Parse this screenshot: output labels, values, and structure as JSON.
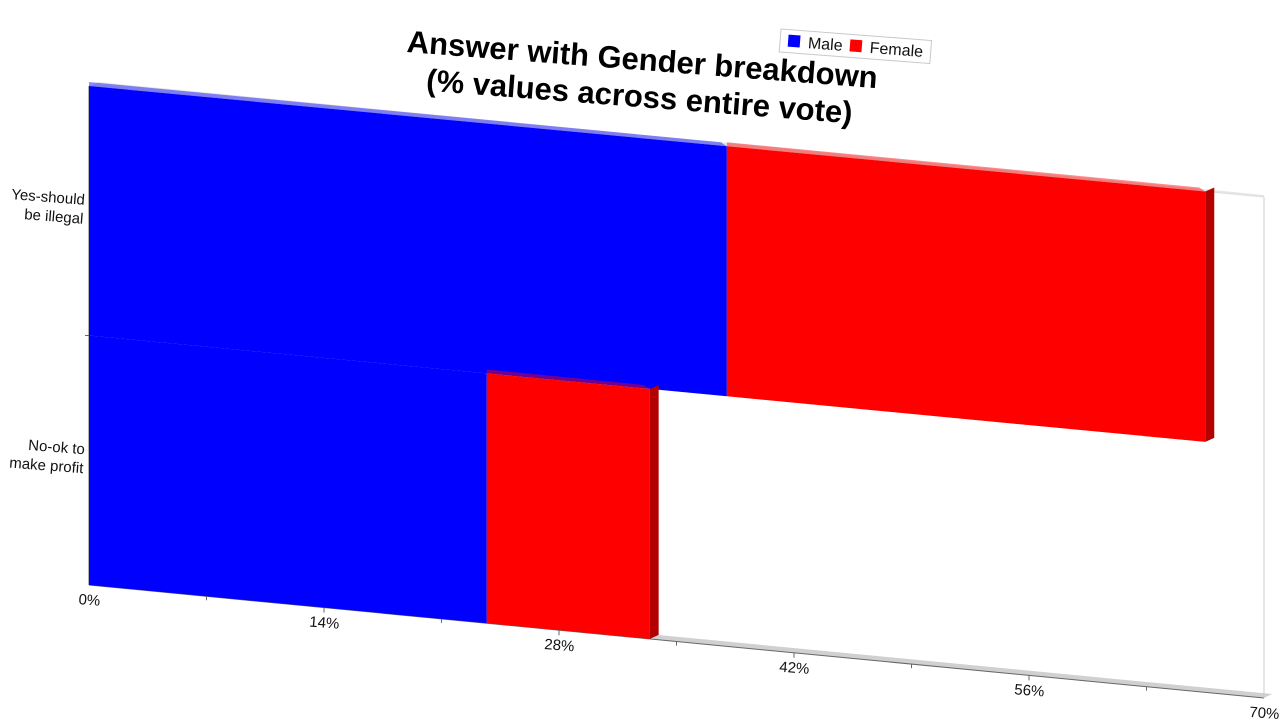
{
  "chart_data": {
    "type": "bar",
    "orientation": "horizontal",
    "stacked": true,
    "three_d": true,
    "title": [
      "Answer with Gender breakdown",
      "(% values across entire vote)"
    ],
    "categories": [
      [
        "Yes-should",
        "be illegal"
      ],
      [
        "No-ok to",
        "make profit"
      ]
    ],
    "series": [
      {
        "name": "Male",
        "color": "#0000ff",
        "values": [
          38,
          23.7
        ]
      },
      {
        "name": "Female",
        "color": "#ff0000",
        "values": [
          28.5,
          9.7
        ]
      }
    ],
    "xlim": [
      0,
      70
    ],
    "xticks": [
      "0%",
      "14%",
      "28%",
      "42%",
      "56%",
      "70%"
    ],
    "xtick_values": [
      0,
      14,
      28,
      42,
      56,
      70
    ],
    "legend_position": "top-right",
    "grid": false
  }
}
